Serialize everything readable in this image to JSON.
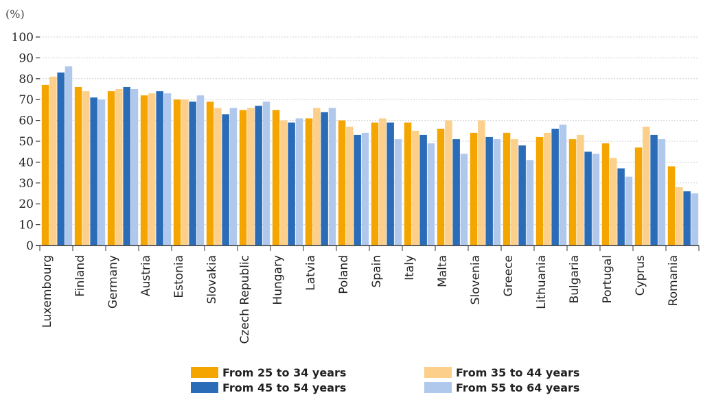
{
  "chart_data": {
    "type": "bar",
    "unit_label": "(%)",
    "ylim": [
      0,
      100
    ],
    "yticks": [
      0,
      10,
      20,
      30,
      40,
      50,
      60,
      70,
      80,
      90,
      100
    ],
    "categories": [
      "Luxembourg",
      "Finland",
      "Germany",
      "Austria",
      "Estonia",
      "Slovakia",
      "Czech Republic",
      "Hungary",
      "Latvia",
      "Poland",
      "Spain",
      "Italy",
      "Malta",
      "Slovenia",
      "Greece",
      "Lithuania",
      "Bulgaria",
      "Portugal",
      "Cyprus",
      "Romania"
    ],
    "series": [
      {
        "name": "From 25 to 34 years",
        "color": "#f5a500",
        "values": [
          77,
          76,
          74,
          72,
          70,
          69,
          65,
          65,
          61,
          60,
          59,
          59,
          56,
          54,
          54,
          52,
          51,
          49,
          47,
          38
        ]
      },
      {
        "name": "From 35 to 44 years",
        "color": "#fcd08a",
        "values": [
          81,
          74,
          75,
          73,
          70,
          66,
          66,
          60,
          66,
          57,
          61,
          55,
          60,
          60,
          51,
          54,
          53,
          42,
          57,
          28
        ]
      },
      {
        "name": "From 45 to 54 years",
        "color": "#2b6cb8",
        "values": [
          83,
          71,
          76,
          74,
          69,
          63,
          67,
          59,
          64,
          53,
          59,
          53,
          51,
          52,
          48,
          56,
          45,
          37,
          53,
          26
        ]
      },
      {
        "name": "From 55 to 64 years",
        "color": "#b0c8ec",
        "values": [
          86,
          70,
          75,
          73,
          72,
          66,
          69,
          61,
          66,
          54,
          51,
          49,
          44,
          51,
          41,
          58,
          44,
          33,
          51,
          25
        ]
      }
    ],
    "grid": true,
    "legend_position": "bottom"
  }
}
